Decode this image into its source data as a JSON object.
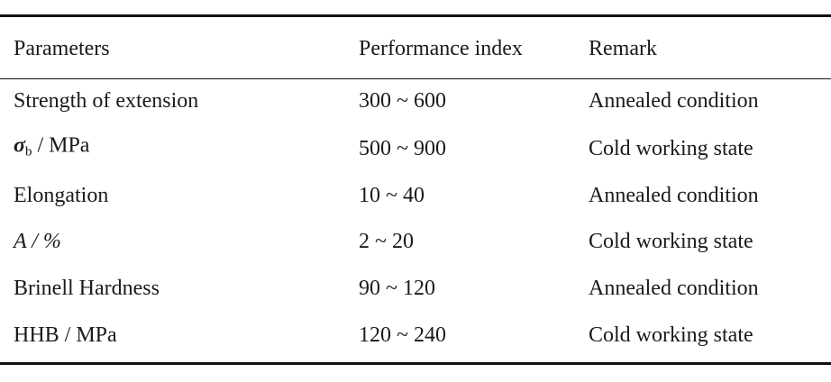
{
  "table": {
    "header": [
      "Parameters",
      "Performance index",
      "Remark"
    ],
    "rows": [
      [
        "Strength of extension",
        "300 ~ 600",
        "Annealed condition"
      ],
      [
        {
          "symbol": "σ",
          "sub": "b",
          "unit": " / MPa"
        },
        "500 ~ 900",
        "Cold working state"
      ],
      [
        "Elongation",
        "10 ~ 40",
        "Annealed condition"
      ],
      [
        "A / %",
        "2 ~ 20",
        "Cold working state"
      ],
      [
        "Brinell Hardness",
        "90 ~ 120",
        "Annealed condition"
      ],
      [
        "HHB / MPa",
        "120 ~ 240",
        "Cold working state"
      ]
    ]
  }
}
